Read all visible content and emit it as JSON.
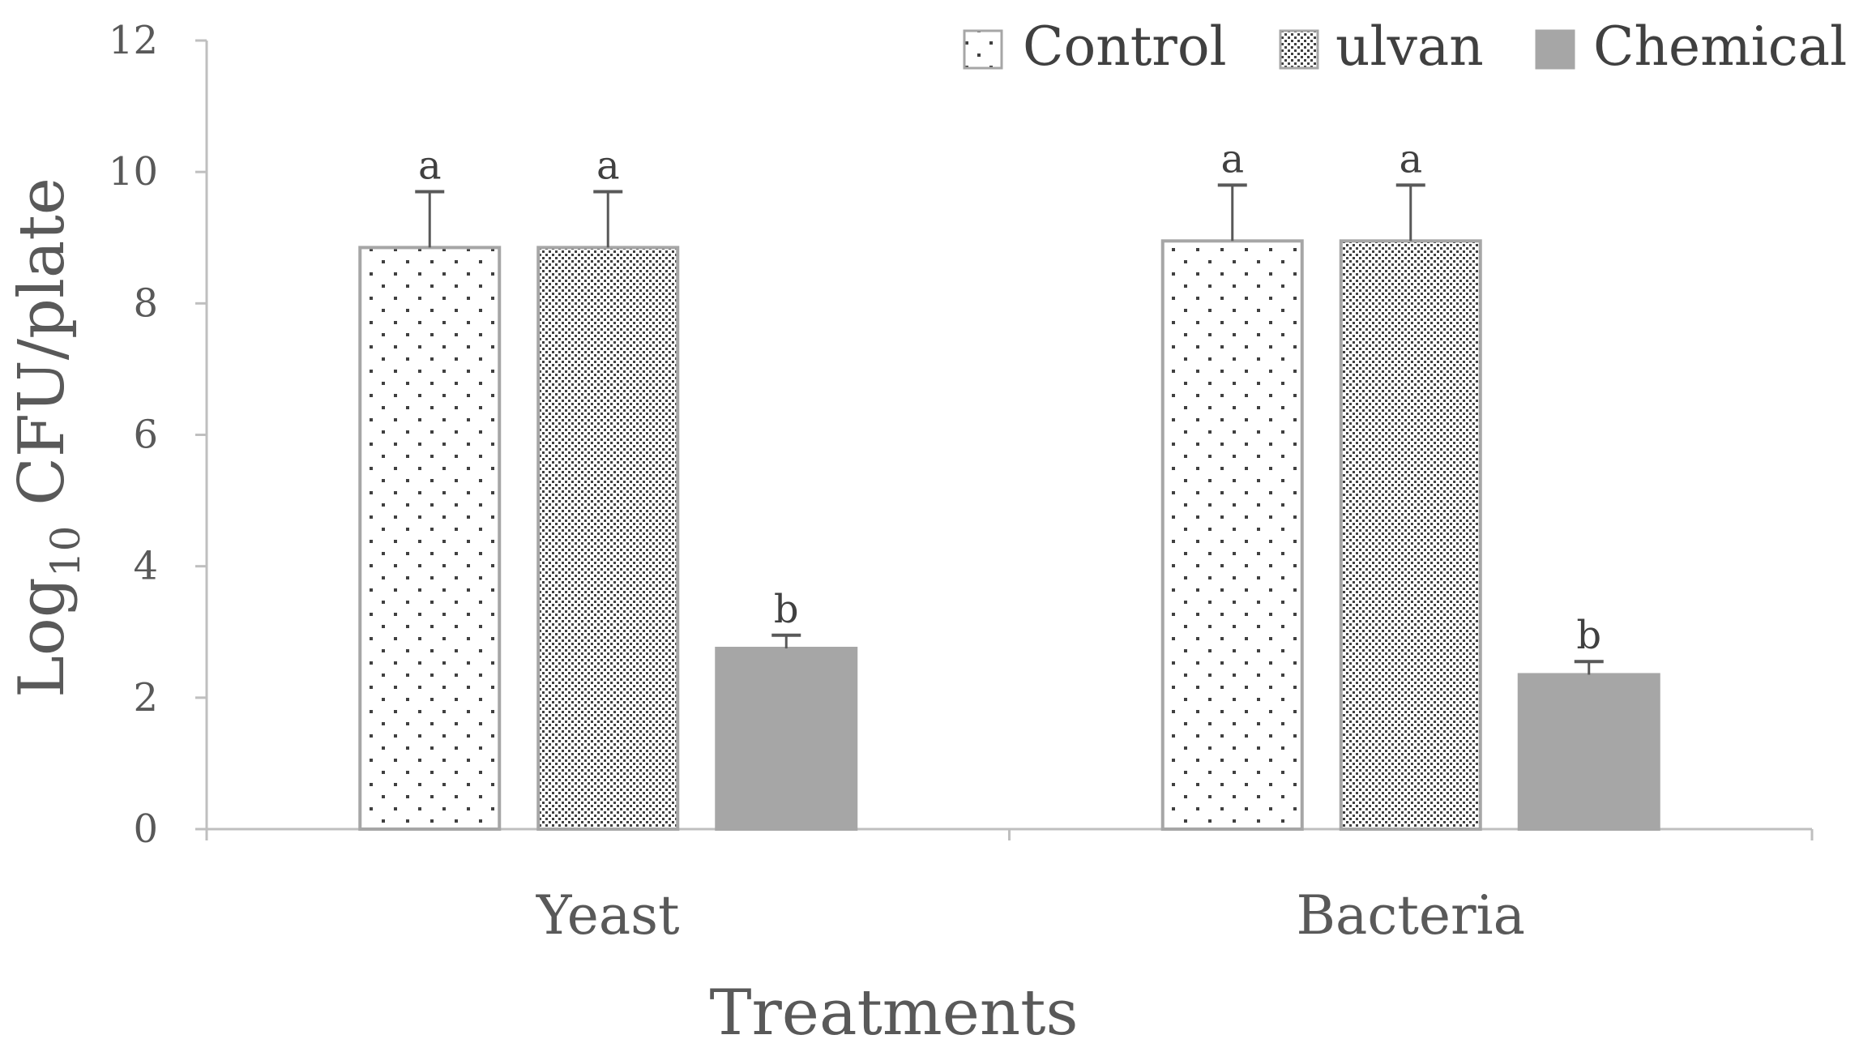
{
  "chart_data": {
    "type": "bar",
    "title": "",
    "xlabel": "Treatments",
    "ylabel_main": "Log",
    "ylabel_sub": "10",
    "ylabel_rest": " CFU/plate",
    "ylim": [
      0,
      12
    ],
    "yticks": [
      0,
      2,
      4,
      6,
      8,
      10,
      12
    ],
    "categories": [
      "Yeast",
      "Bacteria"
    ],
    "legend_position": "top-right",
    "series": [
      {
        "name": "Control",
        "pattern": "sparse-dots",
        "color": "#ffffff",
        "stroke": "#a6a6a6",
        "values": [
          8.85,
          8.95
        ],
        "errors": [
          0.85,
          0.85
        ],
        "sig": [
          "a",
          "a"
        ]
      },
      {
        "name": "ulvan",
        "pattern": "dense-dots",
        "color": "#ffffff",
        "stroke": "#a6a6a6",
        "values": [
          8.85,
          8.95
        ],
        "errors": [
          0.85,
          0.85
        ],
        "sig": [
          "a",
          "a"
        ]
      },
      {
        "name": "Chemical",
        "pattern": "solid",
        "color": "#a6a6a6",
        "stroke": "#a6a6a6",
        "values": [
          2.75,
          2.35
        ],
        "errors": [
          0.2,
          0.2
        ],
        "sig": [
          "b",
          "b"
        ]
      }
    ],
    "colors": {
      "axis": "#bfbfbf",
      "error_bar": "#595959",
      "dot": "#404040"
    }
  }
}
